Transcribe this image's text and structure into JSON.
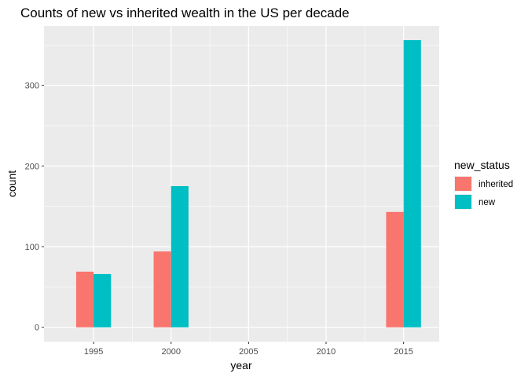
{
  "chart_data": {
    "type": "bar",
    "title": "Counts of new vs inherited wealth in the US per decade",
    "xlabel": "year",
    "ylabel": "count",
    "x_ticks": [
      "1995",
      "2000",
      "2005",
      "2010",
      "2015"
    ],
    "x_tick_values": [
      1995,
      2000,
      2005,
      2010,
      2015
    ],
    "xlim": [
      1991.8,
      2017.3
    ],
    "y_ticks": [
      0,
      100,
      200,
      300
    ],
    "ylim": [
      -17.8,
      373.6
    ],
    "grid": true,
    "legend": {
      "title": "new_status",
      "position": "right",
      "entries": [
        {
          "label": "inherited",
          "color": "#F8766D"
        },
        {
          "label": "new",
          "color": "#00BFC4"
        }
      ]
    },
    "bar_width_years": 2.25,
    "series": [
      {
        "name": "inherited",
        "color": "#F8766D",
        "points": [
          {
            "x": 1995,
            "y": 69
          },
          {
            "x": 2000,
            "y": 94
          },
          {
            "x": 2015,
            "y": 143
          }
        ]
      },
      {
        "name": "new",
        "color": "#00BFC4",
        "points": [
          {
            "x": 1995,
            "y": 66
          },
          {
            "x": 2000,
            "y": 175
          },
          {
            "x": 2015,
            "y": 356
          }
        ]
      }
    ]
  }
}
